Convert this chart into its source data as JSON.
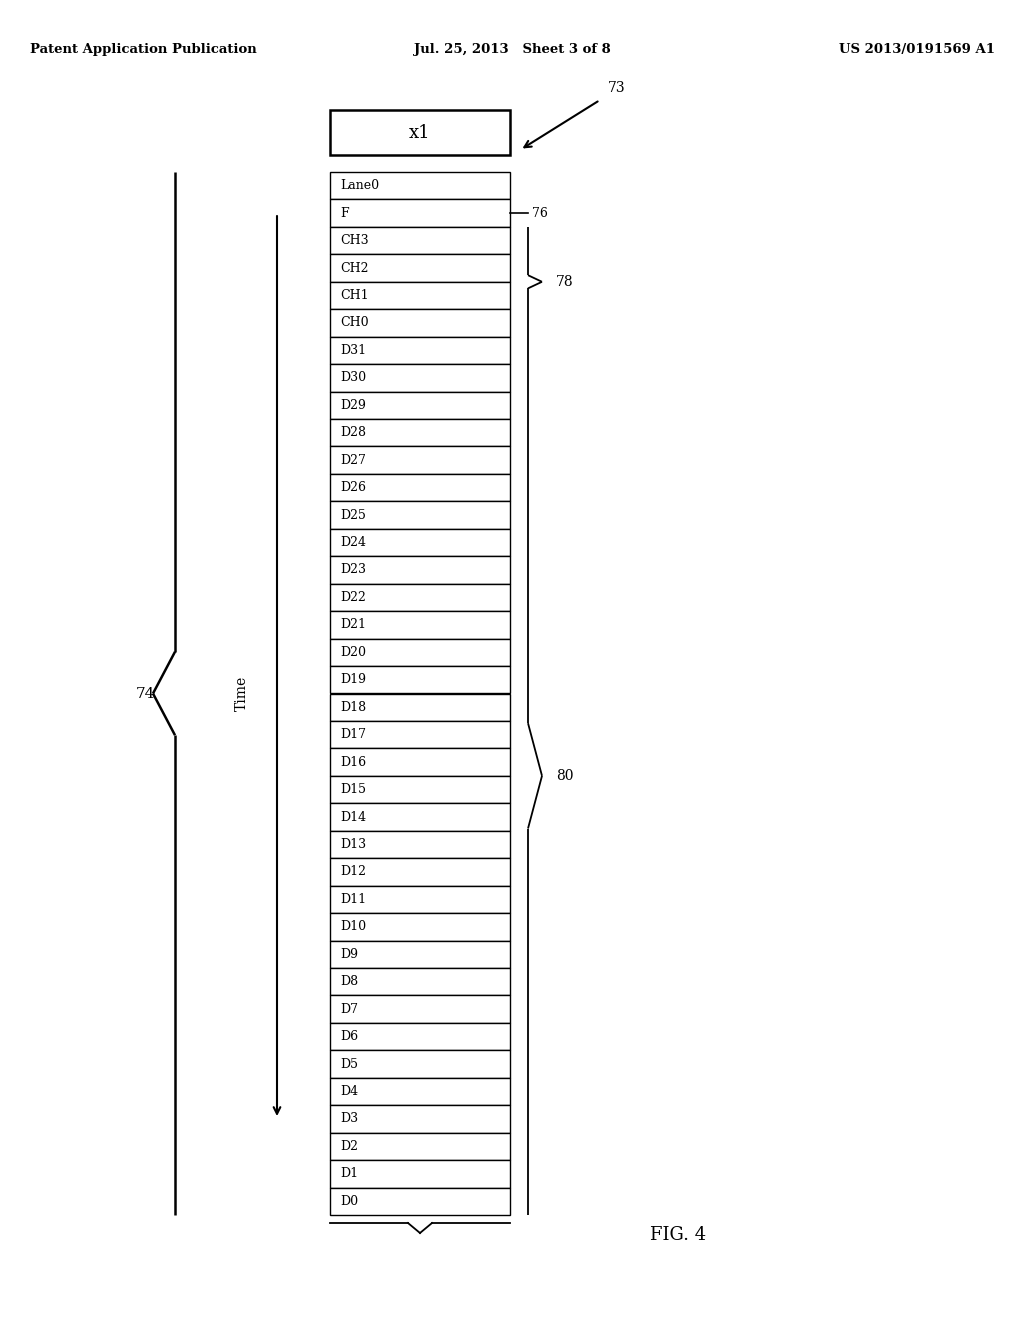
{
  "title_left": "Patent Application Publication",
  "title_center": "Jul. 25, 2013   Sheet 3 of 8",
  "title_right": "US 2013/0191569 A1",
  "x1_label": "x1",
  "rows": [
    "Lane0",
    "F",
    "CH3",
    "CH2",
    "CH1",
    "CH0",
    "D31",
    "D30",
    "D29",
    "D28",
    "D27",
    "D26",
    "D25",
    "D24",
    "D23",
    "D22",
    "D21",
    "D20",
    "D19",
    "D18",
    "D17",
    "D16",
    "D15",
    "D14",
    "D13",
    "D12",
    "D11",
    "D10",
    "D9",
    "D8",
    "D7",
    "D6",
    "D5",
    "D4",
    "D3",
    "D2",
    "D1",
    "D0"
  ],
  "fig_label": "FIG. 4",
  "label_74": "74",
  "label_76": "76",
  "label_78": "78",
  "label_80": "80",
  "label_73": "73",
  "time_label": "Time",
  "bg_color": "#ffffff",
  "box_color": "#000000",
  "text_color": "#000000"
}
